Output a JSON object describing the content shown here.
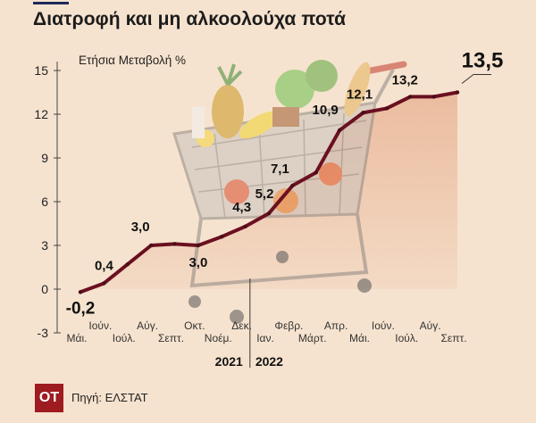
{
  "header": {
    "title": "Διατροφή και μη αλκοολούχα ποτά"
  },
  "footer": {
    "logo": "ΟΤ",
    "source": "Πηγή: ΕΛΣΤΑΤ"
  },
  "chart_data": {
    "type": "line",
    "ylabel": "Ετήσια Μεταβολή %",
    "ylim": [
      -3,
      15
    ],
    "yticks": [
      -3,
      0,
      3,
      6,
      9,
      12,
      15
    ],
    "grid": false,
    "x": [
      "Μάι.",
      "Ιούν.",
      "Ιούλ.",
      "Αύγ.",
      "Σεπτ.",
      "Οκτ.",
      "Νοέμ.",
      "Δεκ.",
      "Ιαν.",
      "Φεβρ.",
      "Μάρτ.",
      "Απρ.",
      "Μάι.",
      "Ιούν.",
      "Ιούλ.",
      "Αύγ.",
      "Σεπτ."
    ],
    "year_labels": [
      "2021",
      "2022"
    ],
    "series": [
      {
        "values": [
          -0.2,
          0.4,
          1.7,
          3.0,
          3.1,
          3.0,
          3.6,
          4.3,
          5.2,
          7.1,
          8.0,
          10.9,
          12.1,
          12.4,
          13.2,
          13.2,
          13.5
        ]
      }
    ],
    "data_labels": [
      {
        "index": 0,
        "text": "-0,2"
      },
      {
        "index": 1,
        "text": "0,4"
      },
      {
        "index": 3,
        "text": "3,0"
      },
      {
        "index": 5,
        "text": "3,0"
      },
      {
        "index": 7,
        "text": "4,3"
      },
      {
        "index": 8,
        "text": "5,2"
      },
      {
        "index": 9,
        "text": "7,1"
      },
      {
        "index": 11,
        "text": "10,9"
      },
      {
        "index": 12,
        "text": "12,1"
      },
      {
        "index": 14,
        "text": "13,2"
      },
      {
        "index": 16,
        "text": "13,5"
      }
    ],
    "colors": {
      "line": "#6a1020",
      "area": "#ebbfa2",
      "marker": "#4a0c18"
    }
  }
}
